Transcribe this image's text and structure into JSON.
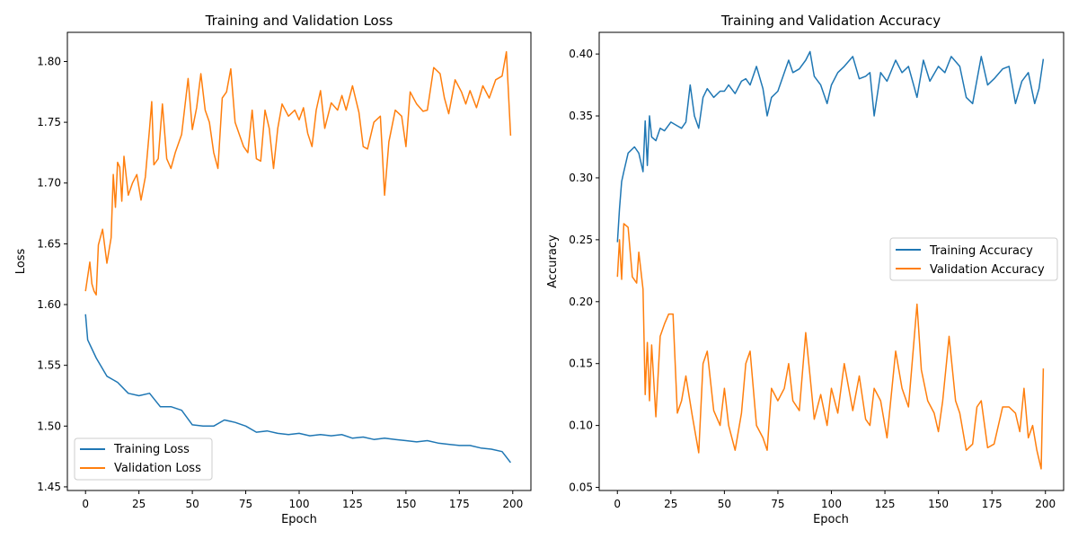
{
  "chart_data": [
    {
      "type": "line",
      "title": "Training and Validation Loss",
      "xlabel": "Epoch",
      "ylabel": "Loss",
      "xlim": [
        -8.5,
        208.5
      ],
      "ylim": [
        1.447,
        1.824
      ],
      "xticks": [
        0,
        25,
        50,
        75,
        100,
        125,
        150,
        175,
        200
      ],
      "yticks": [
        1.45,
        1.5,
        1.55,
        1.6,
        1.65,
        1.7,
        1.75,
        1.8
      ],
      "yticks_labels": [
        "1.45",
        "1.50",
        "1.55",
        "1.60",
        "1.65",
        "1.70",
        "1.75",
        "1.80"
      ],
      "legend": "lower left",
      "series": [
        {
          "name": "Training Loss",
          "color": "#1f77b4",
          "x": [
            0,
            1,
            5,
            10,
            15,
            20,
            25,
            30,
            35,
            40,
            45,
            50,
            55,
            60,
            65,
            70,
            75,
            80,
            85,
            90,
            95,
            100,
            105,
            110,
            115,
            120,
            125,
            130,
            135,
            140,
            145,
            150,
            155,
            160,
            165,
            170,
            175,
            180,
            185,
            190,
            195,
            199
          ],
          "values": [
            1.592,
            1.571,
            1.556,
            1.541,
            1.536,
            1.527,
            1.525,
            1.527,
            1.516,
            1.516,
            1.513,
            1.501,
            1.5,
            1.5,
            1.505,
            1.503,
            1.5,
            1.495,
            1.496,
            1.494,
            1.493,
            1.494,
            1.492,
            1.493,
            1.492,
            1.493,
            1.49,
            1.491,
            1.489,
            1.49,
            1.489,
            1.488,
            1.487,
            1.488,
            1.486,
            1.485,
            1.484,
            1.484,
            1.482,
            1.481,
            1.479,
            1.47
          ]
        },
        {
          "name": "Validation Loss",
          "color": "#ff7f0e",
          "x": [
            0,
            2,
            3,
            4,
            5,
            6,
            8,
            10,
            12,
            13,
            14,
            15,
            16,
            17,
            18,
            20,
            22,
            24,
            26,
            28,
            30,
            31,
            32,
            34,
            36,
            38,
            40,
            42,
            45,
            48,
            50,
            52,
            54,
            56,
            58,
            60,
            62,
            64,
            66,
            68,
            70,
            72,
            74,
            76,
            78,
            80,
            82,
            84,
            86,
            88,
            90,
            92,
            95,
            98,
            100,
            102,
            104,
            106,
            108,
            110,
            112,
            115,
            118,
            120,
            122,
            125,
            128,
            130,
            132,
            135,
            138,
            140,
            142,
            145,
            148,
            150,
            152,
            155,
            158,
            160,
            163,
            166,
            168,
            170,
            173,
            176,
            178,
            180,
            183,
            186,
            189,
            192,
            195,
            197,
            199
          ],
          "values": [
            1.611,
            1.635,
            1.617,
            1.611,
            1.608,
            1.649,
            1.662,
            1.634,
            1.655,
            1.707,
            1.68,
            1.717,
            1.713,
            1.685,
            1.722,
            1.69,
            1.7,
            1.707,
            1.686,
            1.705,
            1.745,
            1.767,
            1.715,
            1.72,
            1.765,
            1.72,
            1.712,
            1.725,
            1.74,
            1.786,
            1.744,
            1.762,
            1.79,
            1.76,
            1.75,
            1.725,
            1.712,
            1.77,
            1.775,
            1.794,
            1.75,
            1.74,
            1.73,
            1.725,
            1.76,
            1.72,
            1.718,
            1.76,
            1.745,
            1.712,
            1.745,
            1.765,
            1.755,
            1.76,
            1.752,
            1.762,
            1.741,
            1.73,
            1.76,
            1.776,
            1.745,
            1.766,
            1.76,
            1.772,
            1.76,
            1.78,
            1.758,
            1.73,
            1.728,
            1.75,
            1.755,
            1.69,
            1.734,
            1.76,
            1.755,
            1.73,
            1.775,
            1.765,
            1.759,
            1.76,
            1.795,
            1.79,
            1.77,
            1.757,
            1.785,
            1.775,
            1.765,
            1.776,
            1.762,
            1.78,
            1.77,
            1.785,
            1.788,
            1.808,
            1.739
          ]
        }
      ]
    },
    {
      "type": "line",
      "title": "Training and Validation Accuracy",
      "xlabel": "Epoch",
      "ylabel": "Accuracy",
      "xlim": [
        -8.5,
        208.5
      ],
      "ylim": [
        0.0475,
        0.4175
      ],
      "xticks": [
        0,
        25,
        50,
        75,
        100,
        125,
        150,
        175,
        200
      ],
      "yticks": [
        0.05,
        0.1,
        0.15,
        0.2,
        0.25,
        0.3,
        0.35,
        0.4
      ],
      "yticks_labels": [
        "0.05",
        "0.10",
        "0.15",
        "0.20",
        "0.25",
        "0.30",
        "0.35",
        "0.40"
      ],
      "legend": "center right",
      "series": [
        {
          "name": "Training Accuracy",
          "color": "#1f77b4",
          "x": [
            0,
            1,
            2,
            3,
            5,
            8,
            10,
            12,
            13,
            14,
            15,
            16,
            18,
            20,
            22,
            25,
            28,
            30,
            32,
            34,
            36,
            38,
            40,
            42,
            45,
            48,
            50,
            52,
            55,
            58,
            60,
            62,
            65,
            68,
            70,
            72,
            75,
            78,
            80,
            82,
            85,
            88,
            90,
            92,
            95,
            98,
            100,
            103,
            106,
            110,
            113,
            116,
            118,
            120,
            123,
            126,
            130,
            133,
            136,
            140,
            143,
            146,
            150,
            153,
            156,
            160,
            163,
            166,
            170,
            173,
            176,
            180,
            183,
            186,
            189,
            192,
            195,
            197,
            199
          ],
          "values": [
            0.248,
            0.275,
            0.297,
            0.305,
            0.32,
            0.325,
            0.32,
            0.305,
            0.346,
            0.31,
            0.35,
            0.333,
            0.33,
            0.34,
            0.338,
            0.345,
            0.342,
            0.34,
            0.345,
            0.375,
            0.35,
            0.34,
            0.365,
            0.372,
            0.365,
            0.37,
            0.37,
            0.375,
            0.368,
            0.378,
            0.38,
            0.375,
            0.39,
            0.372,
            0.35,
            0.365,
            0.37,
            0.385,
            0.395,
            0.385,
            0.388,
            0.395,
            0.402,
            0.382,
            0.375,
            0.36,
            0.375,
            0.385,
            0.39,
            0.398,
            0.38,
            0.382,
            0.385,
            0.35,
            0.385,
            0.378,
            0.395,
            0.385,
            0.39,
            0.365,
            0.395,
            0.378,
            0.39,
            0.385,
            0.398,
            0.39,
            0.365,
            0.36,
            0.398,
            0.375,
            0.38,
            0.388,
            0.39,
            0.36,
            0.378,
            0.385,
            0.36,
            0.372,
            0.396
          ]
        },
        {
          "name": "Validation Accuracy",
          "color": "#ff7f0e",
          "x": [
            0,
            1,
            2,
            3,
            5,
            7,
            9,
            10,
            12,
            13,
            14,
            15,
            16,
            18,
            20,
            22,
            24,
            26,
            28,
            30,
            32,
            35,
            38,
            40,
            42,
            45,
            48,
            50,
            52,
            55,
            58,
            60,
            62,
            65,
            68,
            70,
            72,
            75,
            78,
            80,
            82,
            85,
            88,
            90,
            92,
            95,
            98,
            100,
            103,
            106,
            110,
            113,
            116,
            118,
            120,
            123,
            126,
            130,
            133,
            136,
            140,
            142,
            145,
            148,
            150,
            152,
            155,
            158,
            160,
            163,
            166,
            168,
            170,
            173,
            176,
            180,
            183,
            186,
            188,
            190,
            192,
            194,
            196,
            198,
            199
          ],
          "values": [
            0.22,
            0.25,
            0.218,
            0.263,
            0.26,
            0.22,
            0.215,
            0.24,
            0.21,
            0.125,
            0.167,
            0.12,
            0.165,
            0.107,
            0.172,
            0.182,
            0.19,
            0.19,
            0.11,
            0.12,
            0.14,
            0.108,
            0.078,
            0.15,
            0.16,
            0.112,
            0.1,
            0.13,
            0.1,
            0.08,
            0.11,
            0.15,
            0.16,
            0.1,
            0.09,
            0.08,
            0.13,
            0.12,
            0.13,
            0.15,
            0.12,
            0.112,
            0.175,
            0.14,
            0.105,
            0.125,
            0.1,
            0.13,
            0.11,
            0.15,
            0.112,
            0.14,
            0.105,
            0.1,
            0.13,
            0.12,
            0.09,
            0.16,
            0.13,
            0.115,
            0.198,
            0.145,
            0.12,
            0.11,
            0.095,
            0.12,
            0.172,
            0.12,
            0.11,
            0.08,
            0.085,
            0.115,
            0.12,
            0.082,
            0.085,
            0.115,
            0.115,
            0.11,
            0.095,
            0.13,
            0.09,
            0.1,
            0.08,
            0.065,
            0.146
          ]
        }
      ]
    }
  ]
}
